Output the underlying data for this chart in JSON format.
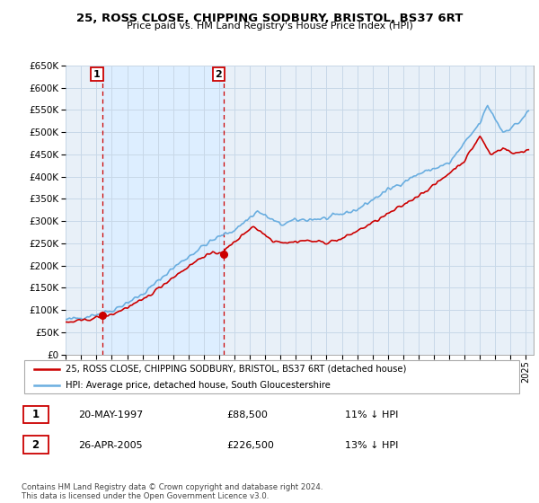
{
  "title": "25, ROSS CLOSE, CHIPPING SODBURY, BRISTOL, BS37 6RT",
  "subtitle": "Price paid vs. HM Land Registry's House Price Index (HPI)",
  "legend_line1": "25, ROSS CLOSE, CHIPPING SODBURY, BRISTOL, BS37 6RT (detached house)",
  "legend_line2": "HPI: Average price, detached house, South Gloucestershire",
  "annotation1_label": "1",
  "annotation1_date": "20-MAY-1997",
  "annotation1_price": "£88,500",
  "annotation1_hpi": "11% ↓ HPI",
  "annotation2_label": "2",
  "annotation2_date": "26-APR-2005",
  "annotation2_price": "£226,500",
  "annotation2_hpi": "13% ↓ HPI",
  "footnote": "Contains HM Land Registry data © Crown copyright and database right 2024.\nThis data is licensed under the Open Government Licence v3.0.",
  "sale1_year": 1997.38,
  "sale1_value": 88500,
  "sale2_year": 2005.32,
  "sale2_value": 226500,
  "hpi_color": "#6aaee0",
  "price_color": "#cc0000",
  "grid_color": "#c8d8e8",
  "shade_color": "#ddeeff",
  "ylim_min": 0,
  "ylim_max": 650000,
  "xlim_min": 1995.0,
  "xlim_max": 2025.5,
  "bg_chart": "#e8f0f8",
  "background_color": "#ffffff"
}
